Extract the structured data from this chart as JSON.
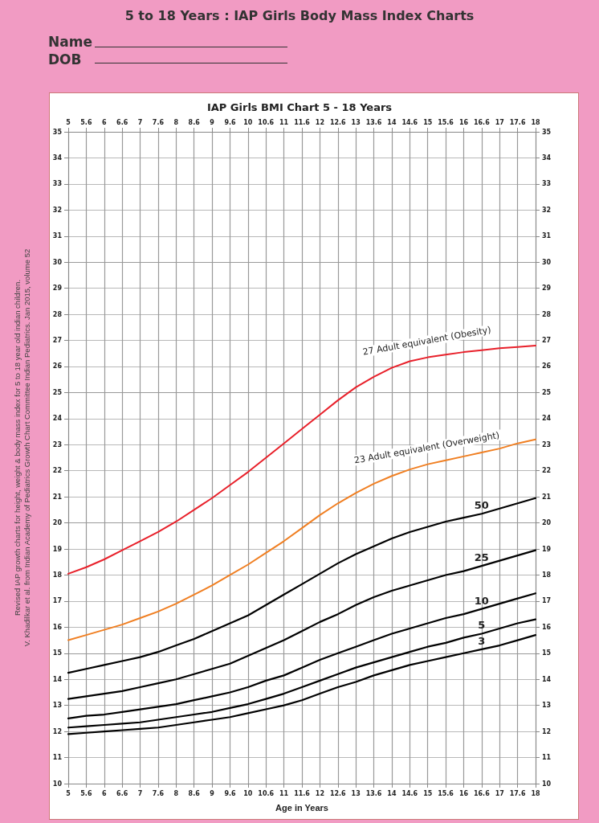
{
  "chart_data": {
    "type": "line",
    "title": "5 to 18 Years : IAP Girls Body Mass Index Charts",
    "subtitle": "IAP Girls BMI Chart 5 - 18 Years",
    "xlabel": "Age in Years",
    "annotations": [
      "Name",
      "DOB",
      "Revised IAP growth charts for height, weight & body mass index for 5 to 18 year old indian children.",
      "V. Khadilkar et al. from Indian Academy of Pediatrics Growth Chart Committee Indian Pediatrics. Jan 2015, volume 52"
    ],
    "categories": [
      "5",
      "5.6",
      "6",
      "6.6",
      "7",
      "7.6",
      "8",
      "8.6",
      "9",
      "9.6",
      "10",
      "10.6",
      "11",
      "11.6",
      "12",
      "12.6",
      "13",
      "13.6",
      "14",
      "14.6",
      "15",
      "15.6",
      "16",
      "16.6",
      "17",
      "17.6",
      "18"
    ],
    "series": [
      {
        "name": "27 Adult equivalent (Obesity)",
        "color": "#e8202a",
        "values": [
          18.05,
          18.3,
          18.6,
          18.95,
          19.3,
          19.65,
          20.05,
          20.5,
          20.95,
          21.45,
          21.95,
          22.5,
          23.05,
          23.6,
          24.15,
          24.7,
          25.2,
          25.6,
          25.95,
          26.2,
          26.35,
          26.45,
          26.55,
          26.62,
          26.7,
          26.75,
          26.8
        ]
      },
      {
        "name": "23 Adult equivalent (Overweight)",
        "color": "#f07f22",
        "values": [
          15.5,
          15.7,
          15.9,
          16.1,
          16.35,
          16.6,
          16.9,
          17.25,
          17.6,
          18.0,
          18.4,
          18.85,
          19.3,
          19.8,
          20.3,
          20.75,
          21.15,
          21.5,
          21.8,
          22.05,
          22.25,
          22.4,
          22.55,
          22.7,
          22.85,
          23.05,
          23.2
        ]
      },
      {
        "name": "50",
        "color": "#000000",
        "values": [
          14.25,
          14.4,
          14.55,
          14.7,
          14.85,
          15.05,
          15.3,
          15.55,
          15.85,
          16.15,
          16.45,
          16.85,
          17.25,
          17.65,
          18.05,
          18.45,
          18.8,
          19.1,
          19.4,
          19.65,
          19.85,
          20.05,
          20.2,
          20.35,
          20.55,
          20.75,
          20.95
        ]
      },
      {
        "name": "25",
        "color": "#000000",
        "values": [
          13.25,
          13.35,
          13.45,
          13.55,
          13.7,
          13.85,
          14.0,
          14.2,
          14.4,
          14.6,
          14.9,
          15.2,
          15.5,
          15.85,
          16.2,
          16.5,
          16.85,
          17.15,
          17.4,
          17.6,
          17.8,
          18.0,
          18.15,
          18.35,
          18.55,
          18.75,
          18.95
        ]
      },
      {
        "name": "10",
        "color": "#000000",
        "values": [
          12.5,
          12.6,
          12.65,
          12.75,
          12.85,
          12.95,
          13.05,
          13.2,
          13.35,
          13.5,
          13.7,
          13.95,
          14.15,
          14.45,
          14.75,
          15.0,
          15.25,
          15.5,
          15.75,
          15.95,
          16.15,
          16.35,
          16.5,
          16.7,
          16.9,
          17.1,
          17.3
        ]
      },
      {
        "name": "5",
        "color": "#000000",
        "values": [
          12.15,
          12.2,
          12.25,
          12.3,
          12.35,
          12.45,
          12.55,
          12.65,
          12.75,
          12.9,
          13.05,
          13.25,
          13.45,
          13.7,
          13.95,
          14.2,
          14.45,
          14.65,
          14.85,
          15.05,
          15.25,
          15.4,
          15.6,
          15.75,
          15.95,
          16.15,
          16.3
        ]
      },
      {
        "name": "3",
        "color": "#000000",
        "values": [
          11.9,
          11.95,
          12.0,
          12.05,
          12.1,
          12.15,
          12.25,
          12.35,
          12.45,
          12.55,
          12.7,
          12.85,
          13.0,
          13.2,
          13.45,
          13.7,
          13.9,
          14.15,
          14.35,
          14.55,
          14.7,
          14.85,
          15.0,
          15.15,
          15.3,
          15.5,
          15.7
        ]
      }
    ],
    "ylim": [
      10,
      35
    ],
    "yticks": [
      10,
      11,
      12,
      13,
      14,
      15,
      16,
      17,
      18,
      19,
      20,
      21,
      22,
      23,
      24,
      25,
      26,
      27,
      28,
      29,
      30,
      31,
      32,
      33,
      34,
      35
    ],
    "y2lim": [
      10,
      35
    ],
    "y2ticks": [
      10,
      11,
      12,
      13,
      14,
      15,
      16,
      17,
      18,
      19,
      20,
      21,
      22,
      23,
      24,
      25,
      26,
      27,
      28,
      29,
      30,
      31,
      32,
      33,
      34,
      35
    ],
    "grid": true,
    "marker": "none",
    "line_style": "solid"
  }
}
